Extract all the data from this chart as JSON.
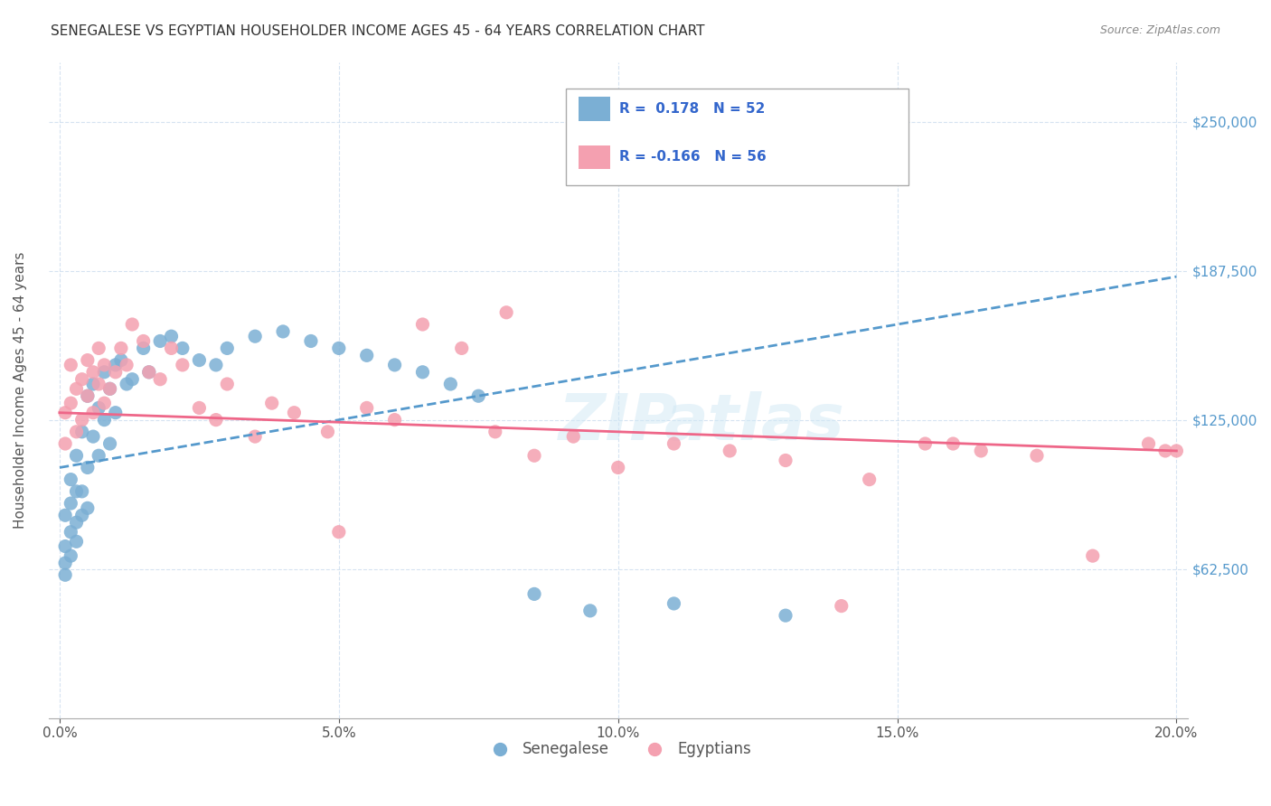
{
  "title": "SENEGALESE VS EGYPTIAN HOUSEHOLDER INCOME AGES 45 - 64 YEARS CORRELATION CHART",
  "source": "Source: ZipAtlas.com",
  "ylabel": "Householder Income Ages 45 - 64 years",
  "xlabel_ticks": [
    "0.0%",
    "5.0%",
    "10.0%",
    "15.0%",
    "20.0%"
  ],
  "xlabel_vals": [
    0.0,
    0.05,
    0.1,
    0.15,
    0.2
  ],
  "ytick_labels": [
    "$62,500",
    "$125,000",
    "$187,500",
    "$250,000"
  ],
  "ytick_vals": [
    62500,
    125000,
    187500,
    250000
  ],
  "ylim": [
    0,
    275000
  ],
  "xlim": [
    -0.002,
    0.202
  ],
  "legend_r1": "R =  0.178   N = 52",
  "legend_r2": "R = -0.166   N = 56",
  "blue_color": "#7bafd4",
  "pink_color": "#f4a0b0",
  "blue_line_color": "#5599cc",
  "pink_line_color": "#ee6688",
  "watermark": "ZIPatlas",
  "senegalese_x": [
    0.001,
    0.001,
    0.001,
    0.001,
    0.002,
    0.002,
    0.002,
    0.002,
    0.003,
    0.003,
    0.003,
    0.003,
    0.004,
    0.004,
    0.004,
    0.005,
    0.005,
    0.005,
    0.006,
    0.006,
    0.007,
    0.007,
    0.008,
    0.008,
    0.009,
    0.009,
    0.01,
    0.01,
    0.011,
    0.012,
    0.013,
    0.015,
    0.016,
    0.018,
    0.02,
    0.022,
    0.025,
    0.028,
    0.03,
    0.035,
    0.04,
    0.045,
    0.05,
    0.055,
    0.06,
    0.065,
    0.07,
    0.075,
    0.085,
    0.095,
    0.11,
    0.13
  ],
  "senegalese_y": [
    85000,
    65000,
    72000,
    60000,
    78000,
    90000,
    100000,
    68000,
    95000,
    82000,
    110000,
    74000,
    120000,
    85000,
    95000,
    135000,
    105000,
    88000,
    140000,
    118000,
    130000,
    110000,
    145000,
    125000,
    138000,
    115000,
    148000,
    128000,
    150000,
    140000,
    142000,
    155000,
    145000,
    158000,
    160000,
    155000,
    150000,
    148000,
    155000,
    160000,
    162000,
    158000,
    155000,
    152000,
    148000,
    145000,
    140000,
    135000,
    52000,
    45000,
    48000,
    43000
  ],
  "egyptian_x": [
    0.001,
    0.001,
    0.002,
    0.002,
    0.003,
    0.003,
    0.004,
    0.004,
    0.005,
    0.005,
    0.006,
    0.006,
    0.007,
    0.007,
    0.008,
    0.008,
    0.009,
    0.01,
    0.011,
    0.012,
    0.013,
    0.015,
    0.016,
    0.018,
    0.02,
    0.022,
    0.025,
    0.028,
    0.03,
    0.035,
    0.038,
    0.042,
    0.048,
    0.055,
    0.06,
    0.065,
    0.072,
    0.078,
    0.085,
    0.092,
    0.1,
    0.11,
    0.12,
    0.13,
    0.145,
    0.155,
    0.165,
    0.175,
    0.185,
    0.195,
    0.198,
    0.05,
    0.08,
    0.14,
    0.16,
    0.2
  ],
  "egyptian_y": [
    128000,
    115000,
    148000,
    132000,
    138000,
    120000,
    142000,
    125000,
    150000,
    135000,
    145000,
    128000,
    155000,
    140000,
    148000,
    132000,
    138000,
    145000,
    155000,
    148000,
    165000,
    158000,
    145000,
    142000,
    155000,
    148000,
    130000,
    125000,
    140000,
    118000,
    132000,
    128000,
    120000,
    130000,
    125000,
    165000,
    155000,
    120000,
    110000,
    118000,
    105000,
    115000,
    112000,
    108000,
    100000,
    115000,
    112000,
    110000,
    68000,
    115000,
    112000,
    78000,
    170000,
    47000,
    115000,
    112000
  ]
}
